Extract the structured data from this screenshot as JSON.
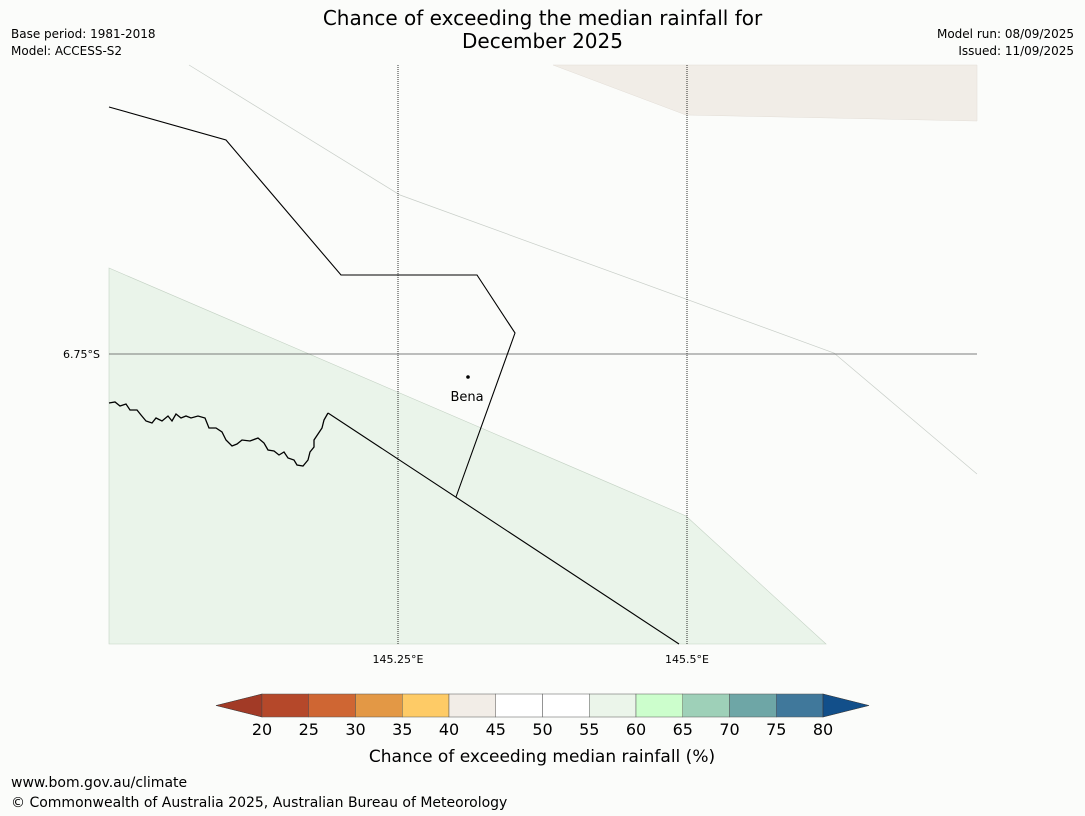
{
  "title_line1": "Chance of exceeding the median rainfall for",
  "title_line2": "December 2025",
  "base_period": "Base period: 1981-2018",
  "model": "Model: ACCESS-S2",
  "model_run": "Model run: 08/09/2025",
  "issued": "Issued: 11/09/2025",
  "map": {
    "lat_labels": [
      "6.75°S"
    ],
    "lon_labels": [
      "145.25°E",
      "145.5°E"
    ],
    "places": [
      {
        "name": "Bena"
      }
    ]
  },
  "colorbar": {
    "title": "Chance of exceeding median rainfall (%)",
    "ticks": [
      "20",
      "25",
      "30",
      "35",
      "40",
      "45",
      "50",
      "55",
      "60",
      "65",
      "70",
      "75",
      "80"
    ],
    "colors": [
      "#a23a26",
      "#b5482a",
      "#cf6633",
      "#e39845",
      "#fecb66",
      "#f2ede7",
      "#ffffff",
      "#ffffff",
      "#ebf5ea",
      "#ccfecc",
      "#9ed0b8",
      "#6ea6a6",
      "#40789b",
      "#124f8a"
    ]
  },
  "footer_url": "www.bom.gov.au/climate",
  "footer_copyright": "© Commonwealth of Australia 2025, Australian Bureau of Meteorology"
}
